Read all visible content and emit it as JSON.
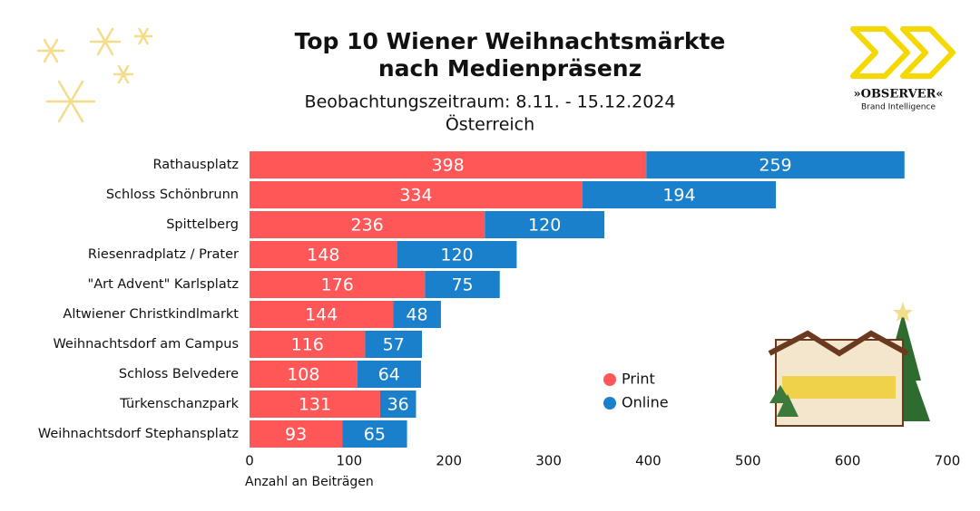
{
  "chart_data": {
    "type": "stacked-bar-horizontal",
    "title": [
      "Top 10 Wiener Weihnachtsmärkte",
      "nach Medienpräsenz"
    ],
    "subtitle": [
      "Beobachtungszeitraum: 8.11. - 15.12.2024",
      "Österreich"
    ],
    "x_label": "Anzahl an Beiträgen",
    "categories": [
      "Rathausplatz",
      "Schloss Schönbrunn",
      "Spittelberg",
      "Riesenradplatz / Prater",
      "\"Art Advent\" Karlsplatz",
      "Altwiener Christkindlmarkt",
      "Weihnachtsdorf am Campus",
      "Schloss Belvedere",
      "Türkenschanzpark",
      "Weihnachtsdorf Stephansplatz"
    ],
    "series": [
      {
        "name": "Print",
        "color": "#ff5757",
        "values": [
          398,
          334,
          236,
          148,
          176,
          144,
          116,
          108,
          131,
          93
        ]
      },
      {
        "name": "Online",
        "color": "#1a80cc",
        "values": [
          259,
          194,
          120,
          120,
          75,
          48,
          57,
          64,
          36,
          65
        ]
      }
    ],
    "xlim": [
      0,
      700
    ],
    "xticks": [
      0,
      100,
      200,
      300,
      400,
      500,
      600,
      700
    ],
    "grid": false,
    "legend": "lower-right",
    "logo": {
      "name": "»OBSERVER«",
      "tagline": "Brand Intelligence"
    }
  }
}
